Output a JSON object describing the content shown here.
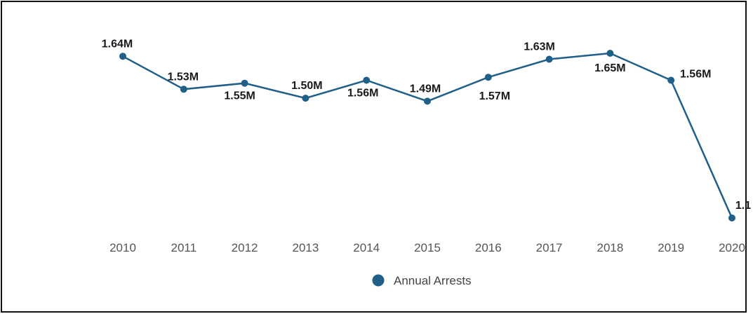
{
  "chart_data": {
    "type": "line",
    "title": "",
    "xlabel": "",
    "ylabel": "",
    "grid": false,
    "legend_position": "bottom",
    "categories": [
      "2010",
      "2011",
      "2012",
      "2013",
      "2014",
      "2015",
      "2016",
      "2017",
      "2018",
      "2019",
      "2020"
    ],
    "series": [
      {
        "name": "Annual Arrests",
        "color": "#1f5f88",
        "values": [
          1.64,
          1.53,
          1.55,
          1.5,
          1.56,
          1.49,
          1.57,
          1.63,
          1.65,
          1.56,
          1.1
        ],
        "labels": [
          "1.64M",
          "1.53M",
          "1.55M",
          "1.50M",
          "1.56M",
          "1.49M",
          "1.57M",
          "1.63M",
          "1.65M",
          "1.56M",
          "1.1"
        ]
      }
    ],
    "value_unit": "M",
    "ylim": [
      1.1,
      1.65
    ]
  }
}
